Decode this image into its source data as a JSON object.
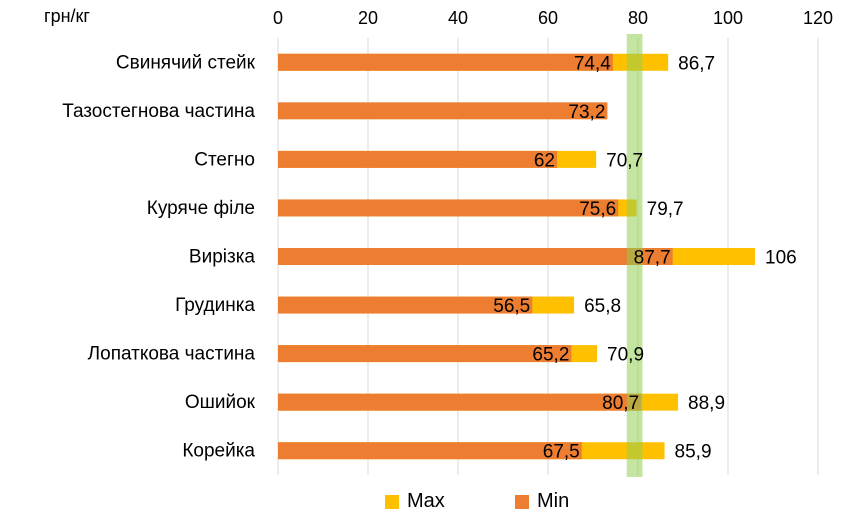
{
  "chart_data": {
    "type": "bar",
    "orientation": "horizontal",
    "stacked_overlay": true,
    "unit_label": "грн/кг",
    "title": "",
    "xlabel": "",
    "ylabel": "",
    "xlim": [
      0,
      120
    ],
    "x_ticks": [
      "0",
      "20",
      "40",
      "60",
      "80",
      "100",
      "120"
    ],
    "grid": true,
    "legend_position": "bottom",
    "categories": [
      "Свинячий стейк",
      "Тазостегнова частина",
      "Стегно",
      "Куряче філе",
      "Вирізка",
      "Грудинка",
      "Лопаткова частина",
      "Ошийок",
      "Корейка"
    ],
    "series": [
      {
        "name": "Max",
        "color": "#FFC000",
        "values": [
          86.7,
          null,
          70.7,
          79.7,
          106,
          65.8,
          70.9,
          88.9,
          85.9
        ],
        "labels": [
          "86,7",
          "",
          "70,7",
          "79,7",
          "106",
          "65,8",
          "70,9",
          "88,9",
          "85,9"
        ]
      },
      {
        "name": "Min",
        "color": "#ED7D31",
        "values": [
          74.4,
          73.2,
          62,
          75.6,
          87.7,
          56.5,
          65.2,
          80.7,
          67.5
        ],
        "labels": [
          "74,4",
          "73,2",
          "62",
          "75,6",
          "87,7",
          "56,5",
          "65,2",
          "80,7",
          "67,5"
        ]
      }
    ],
    "reference_band": {
      "from": 77.5,
      "to": 81,
      "color": "#92D050"
    }
  }
}
